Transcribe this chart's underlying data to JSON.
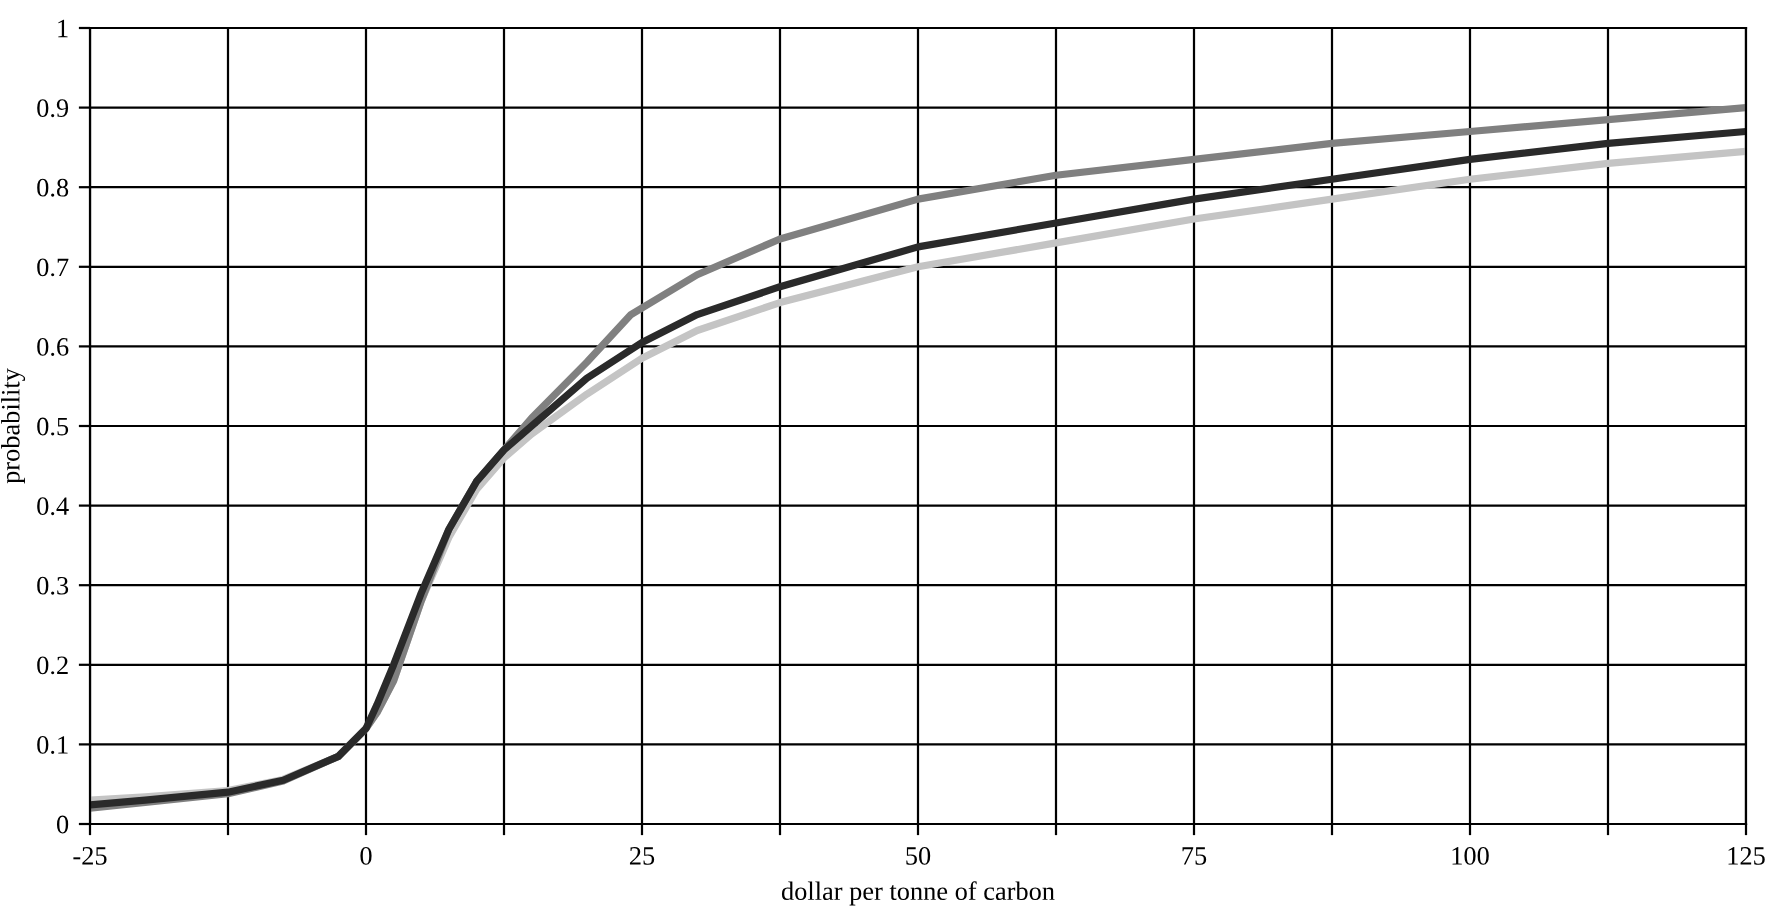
{
  "chart_data": {
    "type": "line",
    "xlabel": "dollar per tonne of carbon",
    "ylabel": "probability",
    "xlim": [
      -25,
      125
    ],
    "ylim": [
      0,
      1
    ],
    "xticks": [
      -25,
      {
        "value": -12.5,
        "label": null
      },
      0,
      {
        "value": 12.5,
        "label": null
      },
      25,
      {
        "value": 37.5,
        "label": null
      },
      50,
      {
        "value": 62.5,
        "label": null
      },
      75,
      {
        "value": 87.5,
        "label": null
      },
      100,
      {
        "value": 112.5,
        "label": null
      },
      125
    ],
    "yticks": [
      0,
      0.1,
      0.2,
      0.3,
      0.4,
      0.5,
      0.6,
      0.7,
      0.8,
      0.9,
      1
    ],
    "grid": true,
    "marker": "none",
    "line_style": "solid",
    "series": [
      {
        "color": "#c4c4c4",
        "x": [
          -25,
          -20,
          -12.5,
          -7.5,
          -2.5,
          0,
          1,
          2.5,
          5,
          7.5,
          10,
          12.5,
          15,
          20,
          25,
          30,
          37.5,
          50,
          62.5,
          75,
          87.5,
          100,
          112.5,
          125
        ],
        "values": [
          0.03,
          0.034,
          0.042,
          0.056,
          0.085,
          0.12,
          0.14,
          0.18,
          0.28,
          0.36,
          0.42,
          0.46,
          0.49,
          0.54,
          0.585,
          0.62,
          0.655,
          0.7,
          0.73,
          0.76,
          0.785,
          0.81,
          0.83,
          0.845
        ]
      },
      {
        "color": "#808080",
        "x": [
          -25,
          -20,
          -12.5,
          -7.5,
          -2.5,
          0,
          1,
          2.5,
          5,
          7.5,
          10,
          12.5,
          15,
          20,
          24,
          30,
          37.5,
          50,
          62.5,
          75,
          87.5,
          100,
          112.5,
          125
        ],
        "values": [
          0.02,
          0.027,
          0.038,
          0.054,
          0.085,
          0.12,
          0.14,
          0.18,
          0.28,
          0.37,
          0.43,
          0.47,
          0.51,
          0.58,
          0.64,
          0.69,
          0.735,
          0.785,
          0.815,
          0.835,
          0.855,
          0.87,
          0.885,
          0.9
        ]
      },
      {
        "color": "#2a2a2a",
        "x": [
          -25,
          -20,
          -12.5,
          -7.5,
          -2.5,
          0,
          1,
          2.5,
          5,
          7.5,
          10,
          12.5,
          15,
          20,
          25,
          30,
          37.5,
          50,
          62.5,
          75,
          87.5,
          100,
          112.5,
          125
        ],
        "values": [
          0.024,
          0.03,
          0.04,
          0.055,
          0.085,
          0.12,
          0.15,
          0.2,
          0.29,
          0.37,
          0.43,
          0.47,
          0.5,
          0.56,
          0.605,
          0.64,
          0.675,
          0.725,
          0.755,
          0.785,
          0.81,
          0.835,
          0.855,
          0.87
        ]
      }
    ]
  }
}
